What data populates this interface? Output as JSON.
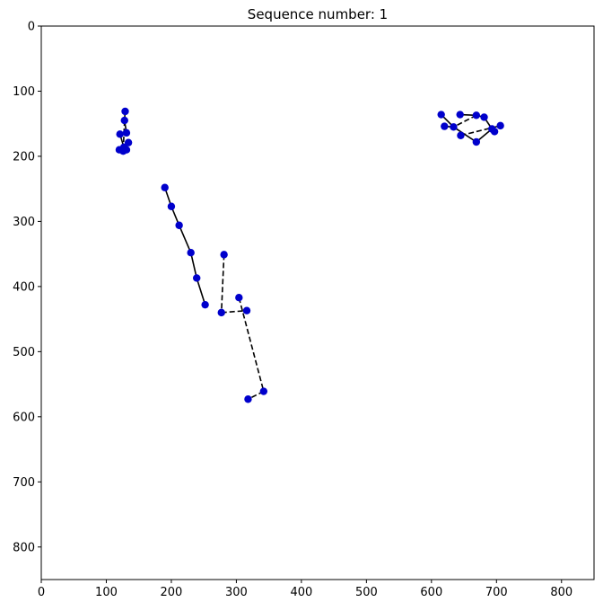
{
  "chart_data": {
    "type": "scatter",
    "title": "Sequence number: 1",
    "xlabel": "",
    "ylabel": "",
    "xlim": [
      0,
      850
    ],
    "ylim": [
      850,
      0
    ],
    "y_inverted": true,
    "grid": false,
    "xticks": [
      0,
      100,
      200,
      300,
      400,
      500,
      600,
      700,
      800
    ],
    "yticks": [
      0,
      100,
      200,
      300,
      400,
      500,
      600,
      700,
      800
    ],
    "point_color": "#0000cc",
    "line_color": "#000000",
    "points": [
      {
        "id": "a1",
        "x": 129,
        "y": 131
      },
      {
        "id": "a2",
        "x": 128,
        "y": 145
      },
      {
        "id": "a3",
        "x": 131,
        "y": 164
      },
      {
        "id": "a4",
        "x": 121,
        "y": 166
      },
      {
        "id": "a5",
        "x": 134,
        "y": 179
      },
      {
        "id": "a6",
        "x": 127,
        "y": 186
      },
      {
        "id": "a7",
        "x": 120,
        "y": 190
      },
      {
        "id": "a8",
        "x": 131,
        "y": 190
      },
      {
        "id": "a9",
        "x": 126,
        "y": 192
      },
      {
        "id": "b1",
        "x": 190,
        "y": 248
      },
      {
        "id": "b2",
        "x": 200,
        "y": 277
      },
      {
        "id": "b3",
        "x": 212,
        "y": 306
      },
      {
        "id": "b4",
        "x": 230,
        "y": 348
      },
      {
        "id": "b5",
        "x": 239,
        "y": 387
      },
      {
        "id": "b6",
        "x": 252,
        "y": 428
      },
      {
        "id": "b7",
        "x": 281,
        "y": 351
      },
      {
        "id": "b8",
        "x": 277,
        "y": 440
      },
      {
        "id": "b9",
        "x": 304,
        "y": 417
      },
      {
        "id": "b10",
        "x": 316,
        "y": 437
      },
      {
        "id": "b11",
        "x": 342,
        "y": 561
      },
      {
        "id": "b12",
        "x": 318,
        "y": 573
      },
      {
        "id": "c1",
        "x": 615,
        "y": 136
      },
      {
        "id": "c2",
        "x": 644,
        "y": 136
      },
      {
        "id": "c3",
        "x": 669,
        "y": 137
      },
      {
        "id": "c4",
        "x": 681,
        "y": 140
      },
      {
        "id": "c5",
        "x": 620,
        "y": 154
      },
      {
        "id": "c6",
        "x": 634,
        "y": 155
      },
      {
        "id": "c7",
        "x": 706,
        "y": 153
      },
      {
        "id": "c8",
        "x": 693,
        "y": 158
      },
      {
        "id": "c9",
        "x": 697,
        "y": 162
      },
      {
        "id": "c10",
        "x": 645,
        "y": 168
      },
      {
        "id": "c11",
        "x": 669,
        "y": 178
      }
    ],
    "segments": [
      {
        "from": "a1",
        "to": "a2",
        "style": "solid"
      },
      {
        "from": "a2",
        "to": "a3",
        "style": "solid"
      },
      {
        "from": "a3",
        "to": "a4",
        "style": "solid"
      },
      {
        "from": "a4",
        "to": "a6",
        "style": "solid"
      },
      {
        "from": "a6",
        "to": "a9",
        "style": "dashed"
      },
      {
        "from": "a2",
        "to": "a9",
        "style": "dashed"
      },
      {
        "from": "a6",
        "to": "a5",
        "style": "solid"
      },
      {
        "from": "a6",
        "to": "a7",
        "style": "solid"
      },
      {
        "from": "b1",
        "to": "b2",
        "style": "solid"
      },
      {
        "from": "b2",
        "to": "b3",
        "style": "solid"
      },
      {
        "from": "b3",
        "to": "b4",
        "style": "solid"
      },
      {
        "from": "b4",
        "to": "b5",
        "style": "solid"
      },
      {
        "from": "b5",
        "to": "b6",
        "style": "solid"
      },
      {
        "from": "b7",
        "to": "b8",
        "style": "dashed"
      },
      {
        "from": "b8",
        "to": "b10",
        "style": "dashed"
      },
      {
        "from": "b9",
        "to": "b11",
        "style": "dashed"
      },
      {
        "from": "b11",
        "to": "b12",
        "style": "dashed"
      },
      {
        "from": "c1",
        "to": "c6",
        "style": "solid"
      },
      {
        "from": "c6",
        "to": "c11",
        "style": "solid"
      },
      {
        "from": "c11",
        "to": "c8",
        "style": "solid"
      },
      {
        "from": "c8",
        "to": "c4",
        "style": "solid"
      },
      {
        "from": "c2",
        "to": "c3",
        "style": "solid"
      },
      {
        "from": "c3",
        "to": "c4",
        "style": "solid"
      },
      {
        "from": "c3",
        "to": "c6",
        "style": "dashed"
      },
      {
        "from": "c10",
        "to": "c7",
        "style": "dashed"
      },
      {
        "from": "c5",
        "to": "c6",
        "style": "solid"
      }
    ]
  }
}
